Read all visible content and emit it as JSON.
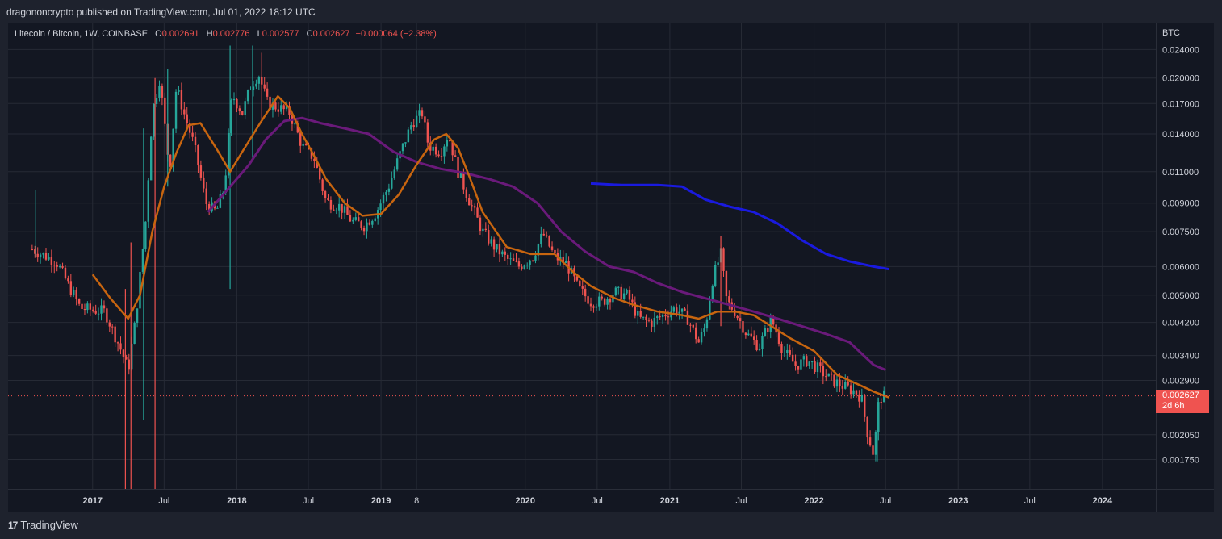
{
  "header": {
    "publisher_line": "dragononcrypto published on TradingView.com, Jul 01, 2022 18:12 UTC"
  },
  "legend": {
    "symbol": "Litecoin / Bitcoin, 1W, COINBASE",
    "o_label": "O",
    "o_value": "0.002691",
    "h_label": "H",
    "h_value": "0.002776",
    "l_label": "L",
    "l_value": "0.002577",
    "c_label": "C",
    "c_value": "0.002627",
    "change": "−0.000064 (−2.38%)"
  },
  "price_tag": {
    "price": "0.002627",
    "countdown": "2d 6h",
    "color": "#ef5350"
  },
  "footer": {
    "brand": "TradingView",
    "logo_glyph": "17"
  },
  "colors": {
    "background": "#131722",
    "frame": "#1e222d",
    "grid": "#262a35",
    "up": "#26a69a",
    "down": "#ef5350",
    "ma_fast": "#c8650f",
    "ma_mid": "#6a1a7a",
    "ma_slow": "#1a1adf"
  },
  "chart_data": {
    "type": "candlestick",
    "title": "Litecoin / Bitcoin, 1W, COINBASE",
    "y_unit": "BTC",
    "y_scale": "log",
    "ylim": [
      0.00145,
      0.0285
    ],
    "y_ticks": [
      "0.024000",
      "0.020000",
      "0.017000",
      "0.014000",
      "0.011000",
      "0.009000",
      "0.007500",
      "0.006000",
      "0.005000",
      "0.004200",
      "0.003400",
      "0.002900",
      "0.002050",
      "0.001750"
    ],
    "x_range": [
      "2016-06-01",
      "2024-05-15"
    ],
    "x_ticks": [
      {
        "label": "2017",
        "date": "2017-01-01",
        "bold": true
      },
      {
        "label": "Jul",
        "date": "2017-07-01",
        "bold": false
      },
      {
        "label": "2018",
        "date": "2018-01-01",
        "bold": true
      },
      {
        "label": "Jul",
        "date": "2018-07-01",
        "bold": false
      },
      {
        "label": "2019",
        "date": "2019-01-01",
        "bold": true
      },
      {
        "label": "8",
        "date": "2019-04-01",
        "bold": false
      },
      {
        "label": "2020",
        "date": "2020-01-01",
        "bold": true
      },
      {
        "label": "Jul",
        "date": "2020-07-01",
        "bold": false
      },
      {
        "label": "2021",
        "date": "2021-01-01",
        "bold": true
      },
      {
        "label": "Jul",
        "date": "2021-07-01",
        "bold": false
      },
      {
        "label": "2022",
        "date": "2022-01-01",
        "bold": true
      },
      {
        "label": "Jul",
        "date": "2022-07-01",
        "bold": false
      },
      {
        "label": "2023",
        "date": "2023-01-01",
        "bold": true
      },
      {
        "label": "Jul",
        "date": "2023-07-01",
        "bold": false
      },
      {
        "label": "2024",
        "date": "2024-01-01",
        "bold": true
      }
    ],
    "last_price": 0.002627,
    "price_path": [
      [
        "2016-08-01",
        0.0067
      ],
      [
        "2016-10-01",
        0.0062
      ],
      [
        "2016-12-01",
        0.0046
      ],
      [
        "2017-02-01",
        0.0045
      ],
      [
        "2017-03-15",
        0.0035
      ],
      [
        "2017-04-01",
        0.0031
      ],
      [
        "2017-04-20",
        0.0043
      ],
      [
        "2017-05-15",
        0.008
      ],
      [
        "2017-06-01",
        0.016
      ],
      [
        "2017-06-20",
        0.02
      ],
      [
        "2017-07-15",
        0.011
      ],
      [
        "2017-08-01",
        0.019
      ],
      [
        "2017-08-20",
        0.016
      ],
      [
        "2017-09-15",
        0.013
      ],
      [
        "2017-10-15",
        0.009
      ],
      [
        "2017-11-10",
        0.0085
      ],
      [
        "2017-12-01",
        0.01
      ],
      [
        "2017-12-20",
        0.018
      ],
      [
        "2018-01-15",
        0.016
      ],
      [
        "2018-02-05",
        0.019
      ],
      [
        "2018-02-25",
        0.0205
      ],
      [
        "2018-03-20",
        0.017
      ],
      [
        "2018-04-20",
        0.0165
      ],
      [
        "2018-05-15",
        0.016
      ],
      [
        "2018-06-15",
        0.013
      ],
      [
        "2018-07-15",
        0.012
      ],
      [
        "2018-08-15",
        0.0091
      ],
      [
        "2018-09-20",
        0.0088
      ],
      [
        "2018-10-20",
        0.008
      ],
      [
        "2018-11-20",
        0.0078
      ],
      [
        "2018-12-20",
        0.0085
      ],
      [
        "2019-01-20",
        0.01
      ],
      [
        "2019-02-20",
        0.0125
      ],
      [
        "2019-03-20",
        0.015
      ],
      [
        "2019-04-15",
        0.016
      ],
      [
        "2019-05-01",
        0.013
      ],
      [
        "2019-06-01",
        0.0125
      ],
      [
        "2019-06-20",
        0.014
      ],
      [
        "2019-07-15",
        0.011
      ],
      [
        "2019-08-15",
        0.009
      ],
      [
        "2019-09-15",
        0.0075
      ],
      [
        "2019-10-15",
        0.0068
      ],
      [
        "2019-11-15",
        0.0063
      ],
      [
        "2019-12-15",
        0.006
      ],
      [
        "2020-01-20",
        0.0064
      ],
      [
        "2020-02-15",
        0.0074
      ],
      [
        "2020-03-15",
        0.0064
      ],
      [
        "2020-04-15",
        0.0061
      ],
      [
        "2020-05-15",
        0.0052
      ],
      [
        "2020-06-15",
        0.0048
      ],
      [
        "2020-07-15",
        0.0048
      ],
      [
        "2020-08-15",
        0.0051
      ],
      [
        "2020-09-15",
        0.005
      ],
      [
        "2020-10-15",
        0.0043
      ],
      [
        "2020-11-15",
        0.0042
      ],
      [
        "2020-12-15",
        0.0044
      ],
      [
        "2021-01-15",
        0.0046
      ],
      [
        "2021-02-15",
        0.0043
      ],
      [
        "2021-03-15",
        0.0037
      ],
      [
        "2021-04-01",
        0.0041
      ],
      [
        "2021-04-20",
        0.0056
      ],
      [
        "2021-05-10",
        0.0065
      ],
      [
        "2021-05-25",
        0.0048
      ],
      [
        "2021-06-15",
        0.0045
      ],
      [
        "2021-07-15",
        0.0039
      ],
      [
        "2021-08-15",
        0.0036
      ],
      [
        "2021-09-15",
        0.0043
      ],
      [
        "2021-10-15",
        0.0035
      ],
      [
        "2021-11-15",
        0.0032
      ],
      [
        "2021-12-15",
        0.0033
      ],
      [
        "2022-01-15",
        0.0031
      ],
      [
        "2022-02-15",
        0.0029
      ],
      [
        "2022-03-15",
        0.0028
      ],
      [
        "2022-04-15",
        0.0027
      ],
      [
        "2022-05-01",
        0.0026
      ],
      [
        "2022-05-15",
        0.0021
      ],
      [
        "2022-06-01",
        0.0018
      ],
      [
        "2022-06-15",
        0.0026
      ],
      [
        "2022-07-01",
        0.002627
      ]
    ],
    "spikes": [
      {
        "date": "2016-08-10",
        "high": 0.0098,
        "low": 0.0064,
        "up": true
      },
      {
        "date": "2017-03-25",
        "high": 0.0052,
        "low": 0.00145,
        "up": false
      },
      {
        "date": "2017-04-08",
        "high": 0.007,
        "low": 0.00145,
        "up": false
      },
      {
        "date": "2017-05-10",
        "high": 0.0145,
        "low": 0.00225,
        "up": true
      },
      {
        "date": "2017-06-08",
        "high": 0.02,
        "low": 0.00145,
        "up": false
      },
      {
        "date": "2017-07-10",
        "high": 0.0212,
        "low": 0.01,
        "up": true
      },
      {
        "date": "2017-12-15",
        "high": 0.0246,
        "low": 0.0052,
        "up": true
      },
      {
        "date": "2018-02-10",
        "high": 0.0246,
        "low": 0.012,
        "up": true
      },
      {
        "date": "2018-03-05",
        "high": 0.0235,
        "low": 0.015,
        "up": false
      },
      {
        "date": "2021-05-10",
        "high": 0.0073,
        "low": 0.0041,
        "up": false
      },
      {
        "date": "2022-06-10",
        "high": 0.0026,
        "low": 0.00173,
        "up": true
      }
    ],
    "ma_fast": {
      "name": "",
      "points": [
        [
          "2017-01-01",
          0.0057
        ],
        [
          "2017-02-15",
          0.0049
        ],
        [
          "2017-04-01",
          0.0043
        ],
        [
          "2017-05-01",
          0.005
        ],
        [
          "2017-06-01",
          0.0075
        ],
        [
          "2017-07-01",
          0.01
        ],
        [
          "2017-08-01",
          0.0124
        ],
        [
          "2017-09-01",
          0.0148
        ],
        [
          "2017-10-01",
          0.015
        ],
        [
          "2017-11-15",
          0.0125
        ],
        [
          "2017-12-15",
          0.011
        ],
        [
          "2018-01-15",
          0.0125
        ],
        [
          "2018-03-01",
          0.015
        ],
        [
          "2018-04-15",
          0.0178
        ],
        [
          "2018-05-15",
          0.0165
        ],
        [
          "2018-06-15",
          0.014
        ],
        [
          "2018-07-15",
          0.0122
        ],
        [
          "2018-08-15",
          0.0105
        ],
        [
          "2018-10-01",
          0.009
        ],
        [
          "2018-11-15",
          0.0083
        ],
        [
          "2019-01-01",
          0.0084
        ],
        [
          "2019-02-15",
          0.0095
        ],
        [
          "2019-04-01",
          0.0115
        ],
        [
          "2019-05-15",
          0.0135
        ],
        [
          "2019-06-15",
          0.014
        ],
        [
          "2019-07-15",
          0.0128
        ],
        [
          "2019-08-15",
          0.0105
        ],
        [
          "2019-09-15",
          0.0085
        ],
        [
          "2019-11-15",
          0.0068
        ],
        [
          "2020-01-15",
          0.0065
        ],
        [
          "2020-03-15",
          0.0065
        ],
        [
          "2020-05-01",
          0.0058
        ],
        [
          "2020-06-15",
          0.0053
        ],
        [
          "2020-08-15",
          0.0049
        ],
        [
          "2020-10-01",
          0.0047
        ],
        [
          "2020-12-01",
          0.0045
        ],
        [
          "2021-02-01",
          0.0044
        ],
        [
          "2021-03-15",
          0.0043
        ],
        [
          "2021-05-01",
          0.0045
        ],
        [
          "2021-06-15",
          0.0045
        ],
        [
          "2021-08-01",
          0.0044
        ],
        [
          "2021-09-15",
          0.0041
        ],
        [
          "2021-11-01",
          0.0038
        ],
        [
          "2022-01-01",
          0.0035
        ],
        [
          "2022-03-01",
          0.003
        ],
        [
          "2022-05-01",
          0.0028
        ],
        [
          "2022-06-01",
          0.0027
        ],
        [
          "2022-07-10",
          0.0026
        ]
      ]
    },
    "ma_mid": {
      "name": "",
      "points": [
        [
          "2017-10-20",
          0.0085
        ],
        [
          "2017-12-15",
          0.01
        ],
        [
          "2018-02-01",
          0.0115
        ],
        [
          "2018-03-15",
          0.0135
        ],
        [
          "2018-05-01",
          0.0152
        ],
        [
          "2018-06-15",
          0.0155
        ],
        [
          "2018-08-01",
          0.015
        ],
        [
          "2018-10-01",
          0.0145
        ],
        [
          "2018-12-01",
          0.014
        ],
        [
          "2019-02-01",
          0.0125
        ],
        [
          "2019-04-01",
          0.0117
        ],
        [
          "2019-06-01",
          0.0112
        ],
        [
          "2019-08-01",
          0.0109
        ],
        [
          "2019-10-01",
          0.0105
        ],
        [
          "2019-12-01",
          0.01
        ],
        [
          "2020-02-01",
          0.009
        ],
        [
          "2020-04-01",
          0.0075
        ],
        [
          "2020-06-01",
          0.0066
        ],
        [
          "2020-08-01",
          0.006
        ],
        [
          "2020-10-01",
          0.0058
        ],
        [
          "2020-12-01",
          0.0054
        ],
        [
          "2021-02-01",
          0.0051
        ],
        [
          "2021-04-01",
          0.0049
        ],
        [
          "2021-06-01",
          0.0047
        ],
        [
          "2021-08-01",
          0.0045
        ],
        [
          "2021-10-01",
          0.0043
        ],
        [
          "2021-12-01",
          0.0041
        ],
        [
          "2022-02-01",
          0.0039
        ],
        [
          "2022-04-01",
          0.0037
        ],
        [
          "2022-06-01",
          0.0032
        ],
        [
          "2022-07-01",
          0.0031
        ]
      ]
    },
    "ma_slow": {
      "name": "",
      "points": [
        [
          "2020-06-15",
          0.0102
        ],
        [
          "2020-09-01",
          0.0101
        ],
        [
          "2020-12-01",
          0.0101
        ],
        [
          "2021-02-01",
          0.01
        ],
        [
          "2021-04-01",
          0.0092
        ],
        [
          "2021-06-01",
          0.0088
        ],
        [
          "2021-08-01",
          0.0085
        ],
        [
          "2021-10-01",
          0.0079
        ],
        [
          "2021-12-01",
          0.0071
        ],
        [
          "2022-02-01",
          0.0065
        ],
        [
          "2022-04-01",
          0.0062
        ],
        [
          "2022-06-01",
          0.006
        ],
        [
          "2022-07-10",
          0.0059
        ]
      ]
    }
  }
}
